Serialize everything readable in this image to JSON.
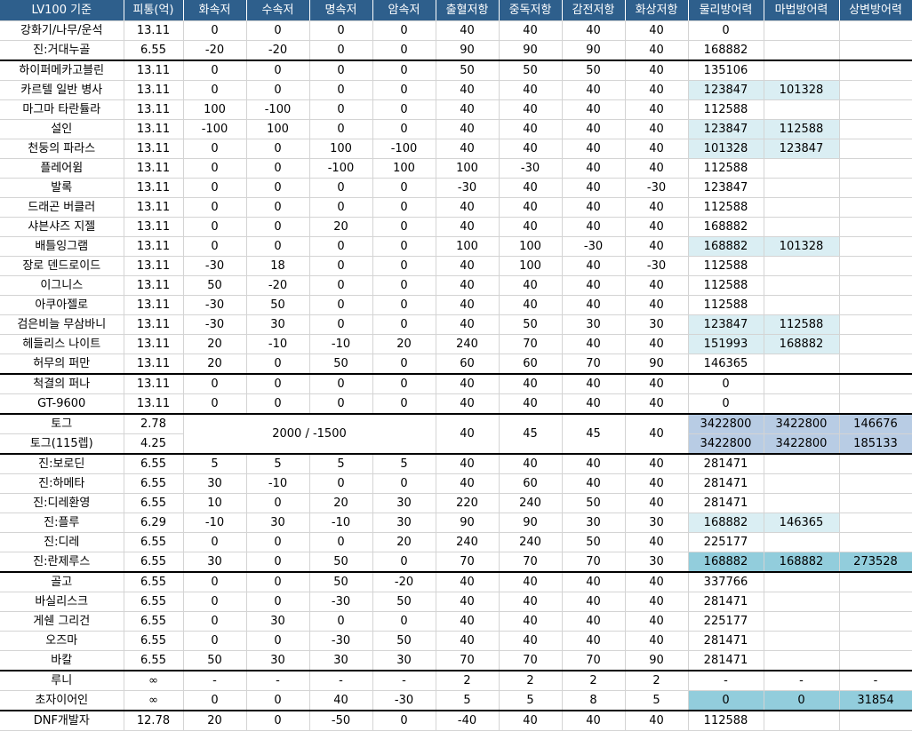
{
  "colors": {
    "header_bg": "#2e5f8c",
    "light": "#daeef3",
    "mid": "#b8cce4",
    "teal": "#92cddc"
  },
  "headers": [
    "LV100 기준",
    "피통(억)",
    "화속저",
    "수속저",
    "명속저",
    "암속저",
    "출혈저항",
    "중독저항",
    "감전저항",
    "화상저항",
    "물리방어력",
    "마법방어력",
    "상변방어력"
  ],
  "rows": [
    {
      "cells": [
        "강화기/나무/운석",
        "13.11",
        "0",
        "0",
        "0",
        "0",
        "40",
        "40",
        "40",
        "40",
        "0",
        "",
        ""
      ],
      "hl": [
        "",
        "",
        ""
      ]
    },
    {
      "cells": [
        "진:거대누골",
        "6.55",
        "-20",
        "-20",
        "0",
        "0",
        "90",
        "90",
        "90",
        "40",
        "168882",
        "",
        ""
      ],
      "hl": [
        "",
        "",
        ""
      ]
    },
    {
      "cells": [
        "하이퍼메카고블린",
        "13.11",
        "0",
        "0",
        "0",
        "0",
        "50",
        "50",
        "50",
        "40",
        "135106",
        "",
        ""
      ],
      "hl": [
        "",
        "",
        ""
      ],
      "group": true
    },
    {
      "cells": [
        "카르텔 일반 병사",
        "13.11",
        "0",
        "0",
        "0",
        "0",
        "40",
        "40",
        "40",
        "40",
        "123847",
        "101328",
        ""
      ],
      "hl": [
        "light",
        "light",
        ""
      ]
    },
    {
      "cells": [
        "마그마 타란튤라",
        "13.11",
        "100",
        "-100",
        "0",
        "0",
        "40",
        "40",
        "40",
        "40",
        "112588",
        "",
        ""
      ],
      "hl": [
        "",
        "",
        ""
      ]
    },
    {
      "cells": [
        "설인",
        "13.11",
        "-100",
        "100",
        "0",
        "0",
        "40",
        "40",
        "40",
        "40",
        "123847",
        "112588",
        ""
      ],
      "hl": [
        "light",
        "light",
        ""
      ]
    },
    {
      "cells": [
        "천둥의 파라스",
        "13.11",
        "0",
        "0",
        "100",
        "-100",
        "40",
        "40",
        "40",
        "40",
        "101328",
        "123847",
        ""
      ],
      "hl": [
        "light",
        "light",
        ""
      ]
    },
    {
      "cells": [
        "플레어윔",
        "13.11",
        "0",
        "0",
        "-100",
        "100",
        "100",
        "-30",
        "40",
        "40",
        "112588",
        "",
        ""
      ],
      "hl": [
        "",
        "",
        ""
      ]
    },
    {
      "cells": [
        "발록",
        "13.11",
        "0",
        "0",
        "0",
        "0",
        "-30",
        "40",
        "40",
        "-30",
        "123847",
        "",
        ""
      ],
      "hl": [
        "",
        "",
        ""
      ]
    },
    {
      "cells": [
        "드래곤 버클러",
        "13.11",
        "0",
        "0",
        "0",
        "0",
        "40",
        "40",
        "40",
        "40",
        "112588",
        "",
        ""
      ],
      "hl": [
        "",
        "",
        ""
      ]
    },
    {
      "cells": [
        "샤븐샤즈 지젤",
        "13.11",
        "0",
        "0",
        "20",
        "0",
        "40",
        "40",
        "40",
        "40",
        "168882",
        "",
        ""
      ],
      "hl": [
        "",
        "",
        ""
      ]
    },
    {
      "cells": [
        "배틀잉그램",
        "13.11",
        "0",
        "0",
        "0",
        "0",
        "100",
        "100",
        "-30",
        "40",
        "168882",
        "101328",
        ""
      ],
      "hl": [
        "light",
        "light",
        ""
      ]
    },
    {
      "cells": [
        "장로 덴드로이드",
        "13.11",
        "-30",
        "18",
        "0",
        "0",
        "40",
        "100",
        "40",
        "-30",
        "112588",
        "",
        ""
      ],
      "hl": [
        "",
        "",
        ""
      ]
    },
    {
      "cells": [
        "이그니스",
        "13.11",
        "50",
        "-20",
        "0",
        "0",
        "40",
        "40",
        "40",
        "40",
        "112588",
        "",
        ""
      ],
      "hl": [
        "",
        "",
        ""
      ]
    },
    {
      "cells": [
        "아쿠아젤로",
        "13.11",
        "-30",
        "50",
        "0",
        "0",
        "40",
        "40",
        "40",
        "40",
        "112588",
        "",
        ""
      ],
      "hl": [
        "",
        "",
        ""
      ]
    },
    {
      "cells": [
        "검은비늘 무삼바니",
        "13.11",
        "-30",
        "30",
        "0",
        "0",
        "40",
        "50",
        "30",
        "30",
        "123847",
        "112588",
        ""
      ],
      "hl": [
        "light",
        "light",
        ""
      ]
    },
    {
      "cells": [
        "헤들리스 나이트",
        "13.11",
        "20",
        "-10",
        "-10",
        "20",
        "240",
        "70",
        "40",
        "40",
        "151993",
        "168882",
        ""
      ],
      "hl": [
        "light",
        "light",
        ""
      ]
    },
    {
      "cells": [
        "허무의 퍼만",
        "13.11",
        "20",
        "0",
        "50",
        "0",
        "60",
        "60",
        "70",
        "90",
        "146365",
        "",
        ""
      ],
      "hl": [
        "",
        "",
        ""
      ]
    },
    {
      "cells": [
        "척결의 퍼나",
        "13.11",
        "0",
        "0",
        "0",
        "0",
        "40",
        "40",
        "40",
        "40",
        "0",
        "",
        ""
      ],
      "hl": [
        "",
        "",
        ""
      ],
      "group": true
    },
    {
      "cells": [
        "GT-9600",
        "13.11",
        "0",
        "0",
        "0",
        "0",
        "40",
        "40",
        "40",
        "40",
        "0",
        "",
        ""
      ],
      "hl": [
        "",
        "",
        ""
      ]
    }
  ],
  "toge": {
    "row1": {
      "name": "토그",
      "hp": "2.78",
      "phys": "3422800",
      "mag": "3422800",
      "status": "146676"
    },
    "row2": {
      "name": "토그(115렙)",
      "hp": "4.25",
      "phys": "3422800",
      "mag": "3422800",
      "status": "185133"
    },
    "elem": "2000 / -1500",
    "bleed": "40",
    "poison": "45",
    "shock": "45",
    "burn": "40"
  },
  "rows2": [
    {
      "cells": [
        "진:보로딘",
        "6.55",
        "5",
        "5",
        "5",
        "5",
        "40",
        "40",
        "40",
        "40",
        "281471",
        "",
        ""
      ],
      "hl": [
        "",
        "",
        ""
      ],
      "group": true
    },
    {
      "cells": [
        "진:하메타",
        "6.55",
        "30",
        "-10",
        "0",
        "0",
        "40",
        "60",
        "40",
        "40",
        "281471",
        "",
        ""
      ],
      "hl": [
        "",
        "",
        ""
      ]
    },
    {
      "cells": [
        "진:디레환영",
        "6.55",
        "10",
        "0",
        "20",
        "30",
        "220",
        "240",
        "50",
        "40",
        "281471",
        "",
        ""
      ],
      "hl": [
        "",
        "",
        ""
      ]
    },
    {
      "cells": [
        "진:플루",
        "6.29",
        "-10",
        "30",
        "-10",
        "30",
        "90",
        "90",
        "30",
        "30",
        "168882",
        "146365",
        ""
      ],
      "hl": [
        "light",
        "light",
        ""
      ]
    },
    {
      "cells": [
        "진:디레",
        "6.55",
        "0",
        "0",
        "0",
        "20",
        "240",
        "240",
        "50",
        "40",
        "225177",
        "",
        ""
      ],
      "hl": [
        "",
        "",
        ""
      ]
    },
    {
      "cells": [
        "진:란제루스",
        "6.55",
        "30",
        "0",
        "50",
        "0",
        "70",
        "70",
        "70",
        "30",
        "168882",
        "168882",
        "273528"
      ],
      "hl": [
        "teal",
        "teal",
        "teal"
      ]
    },
    {
      "cells": [
        "골고",
        "6.55",
        "0",
        "0",
        "50",
        "-20",
        "40",
        "40",
        "40",
        "40",
        "337766",
        "",
        ""
      ],
      "hl": [
        "",
        "",
        ""
      ],
      "group": true
    },
    {
      "cells": [
        "바실리스크",
        "6.55",
        "0",
        "0",
        "-30",
        "50",
        "40",
        "40",
        "40",
        "40",
        "281471",
        "",
        ""
      ],
      "hl": [
        "",
        "",
        ""
      ]
    },
    {
      "cells": [
        "게쉔 그리건",
        "6.55",
        "0",
        "30",
        "0",
        "0",
        "40",
        "40",
        "40",
        "40",
        "225177",
        "",
        ""
      ],
      "hl": [
        "",
        "",
        ""
      ]
    },
    {
      "cells": [
        "오즈마",
        "6.55",
        "0",
        "0",
        "-30",
        "50",
        "40",
        "40",
        "40",
        "40",
        "281471",
        "",
        ""
      ],
      "hl": [
        "",
        "",
        ""
      ]
    },
    {
      "cells": [
        "바칼",
        "6.55",
        "50",
        "30",
        "30",
        "30",
        "70",
        "70",
        "70",
        "90",
        "281471",
        "",
        ""
      ],
      "hl": [
        "",
        "",
        ""
      ]
    },
    {
      "cells": [
        "루니",
        "∞",
        "-",
        "-",
        "-",
        "-",
        "2",
        "2",
        "2",
        "2",
        "-",
        "-",
        "-"
      ],
      "hl": [
        "",
        "",
        ""
      ],
      "group": true
    },
    {
      "cells": [
        "초자이어인",
        "∞",
        "0",
        "0",
        "40",
        "-30",
        "5",
        "5",
        "8",
        "5",
        "0",
        "0",
        "31854"
      ],
      "hl": [
        "teal",
        "teal",
        "teal"
      ]
    },
    {
      "cells": [
        "DNF개발자",
        "12.78",
        "20",
        "0",
        "-50",
        "0",
        "-40",
        "40",
        "40",
        "40",
        "112588",
        "",
        ""
      ],
      "hl": [
        "",
        "",
        ""
      ],
      "group": true
    }
  ]
}
